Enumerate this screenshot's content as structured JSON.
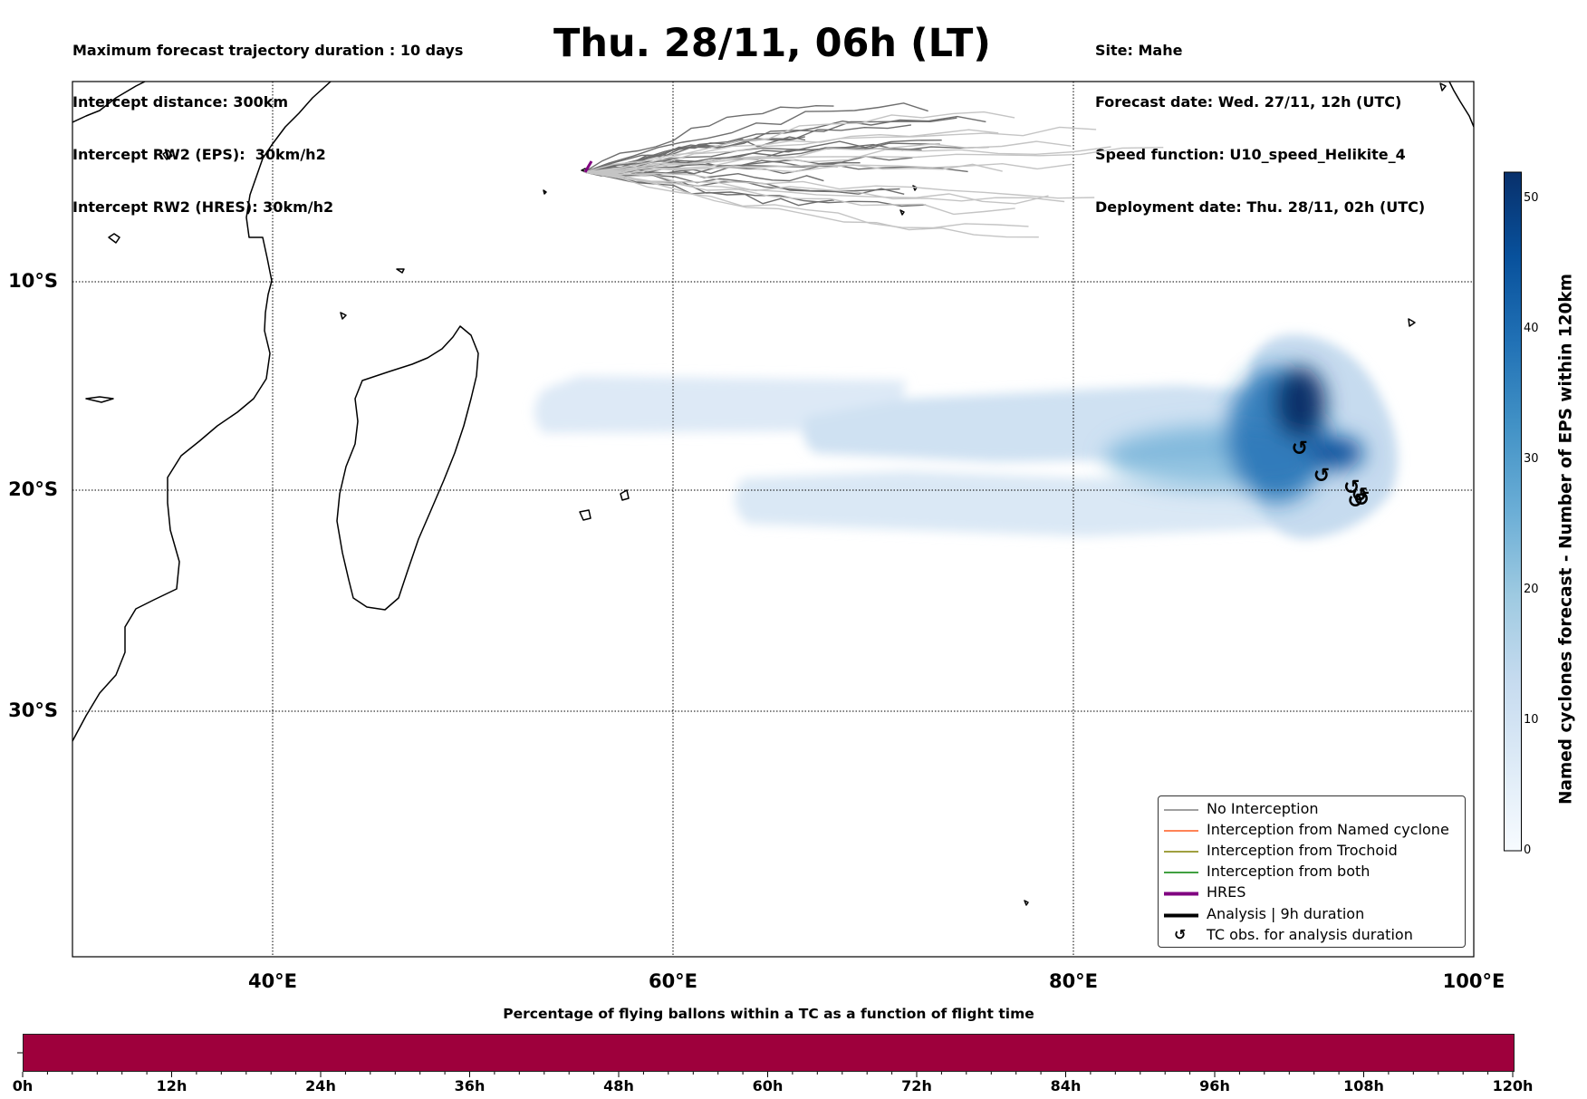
{
  "header_left": [
    "Maximum forecast trajectory duration : 10 days",
    "Intercept distance: 300km",
    "Intercept RW2 (EPS):  30km/h2",
    "Intercept RW2 (HRES): 30km/h2"
  ],
  "header_right": [
    "Site: Mahe",
    "Forecast date: Wed. 27/11, 12h (UTC)",
    "Speed function: U10_speed_Helikite_4",
    "Deployment date: Thu. 28/11, 02h (UTC)"
  ],
  "title": "Thu. 28/11, 06h (LT)",
  "map": {
    "lon_range": [
      30,
      100
    ],
    "lat_range": [
      -43.7,
      1.3
    ],
    "lat_labels": [
      "10°S",
      "20°S",
      "30°S"
    ],
    "lon_labels": [
      "40°E",
      "60°E",
      "80°E",
      "100°E"
    ],
    "gridlines": "dotted",
    "land_color": "#000000",
    "tracks_eps_color": "#6e6e6e",
    "tracks_late_color": "#c4c4c4"
  },
  "legend": {
    "placement": "lower-right",
    "items": [
      {
        "label": "No Interception",
        "color": "#808080"
      },
      {
        "label": "Interception from Named cyclone",
        "color": "#ff5a1e"
      },
      {
        "label": "Interception from Trochoid",
        "color": "#808000"
      },
      {
        "label": "Interception from both",
        "color": "#008000"
      },
      {
        "label": "HRES",
        "color": "#800080"
      },
      {
        "label": "Analysis | 9h duration",
        "color": "#000000"
      },
      {
        "label": "TC obs. for analysis duration",
        "marker": "↺"
      }
    ]
  },
  "colorbar": {
    "title": "Named cyclones forecast - Number of EPS within 120km",
    "ticks": [
      "0",
      "10",
      "20",
      "30",
      "40",
      "50"
    ],
    "range": [
      0,
      52
    ],
    "cmap": [
      "#f7fbff",
      "#deebf7",
      "#c6dbef",
      "#9ecae1",
      "#6baed6",
      "#4292c6",
      "#2171b5",
      "#08519c",
      "#08306b"
    ]
  },
  "bottom_bar": {
    "title": "Percentage of flying ballons within a TC as a function of flight time",
    "color": "#9e003c",
    "ticks": [
      "0h",
      "12h",
      "24h",
      "36h",
      "48h",
      "60h",
      "72h",
      "84h",
      "96h",
      "108h",
      "120h"
    ]
  },
  "chart_data": {
    "type": "heatmap",
    "title": "Thu. 28/11, 06h (LT)",
    "colorbar_label": "Named cyclones forecast - Number of EPS within 120km",
    "colorbar_range": [
      0,
      52
    ],
    "density_peak": {
      "lon": 91.5,
      "lat": -16.5,
      "value": 50
    },
    "tc_obs": [
      {
        "lon": 91.3,
        "lat": -17.9
      },
      {
        "lon": 92.4,
        "lat": -19.3
      },
      {
        "lon": 93.9,
        "lat": -19.9
      },
      {
        "lon": 94.3,
        "lat": -20.3
      },
      {
        "lon": 94.1,
        "lat": -20.6
      },
      {
        "lon": 94.4,
        "lat": -20.5
      }
    ]
  }
}
